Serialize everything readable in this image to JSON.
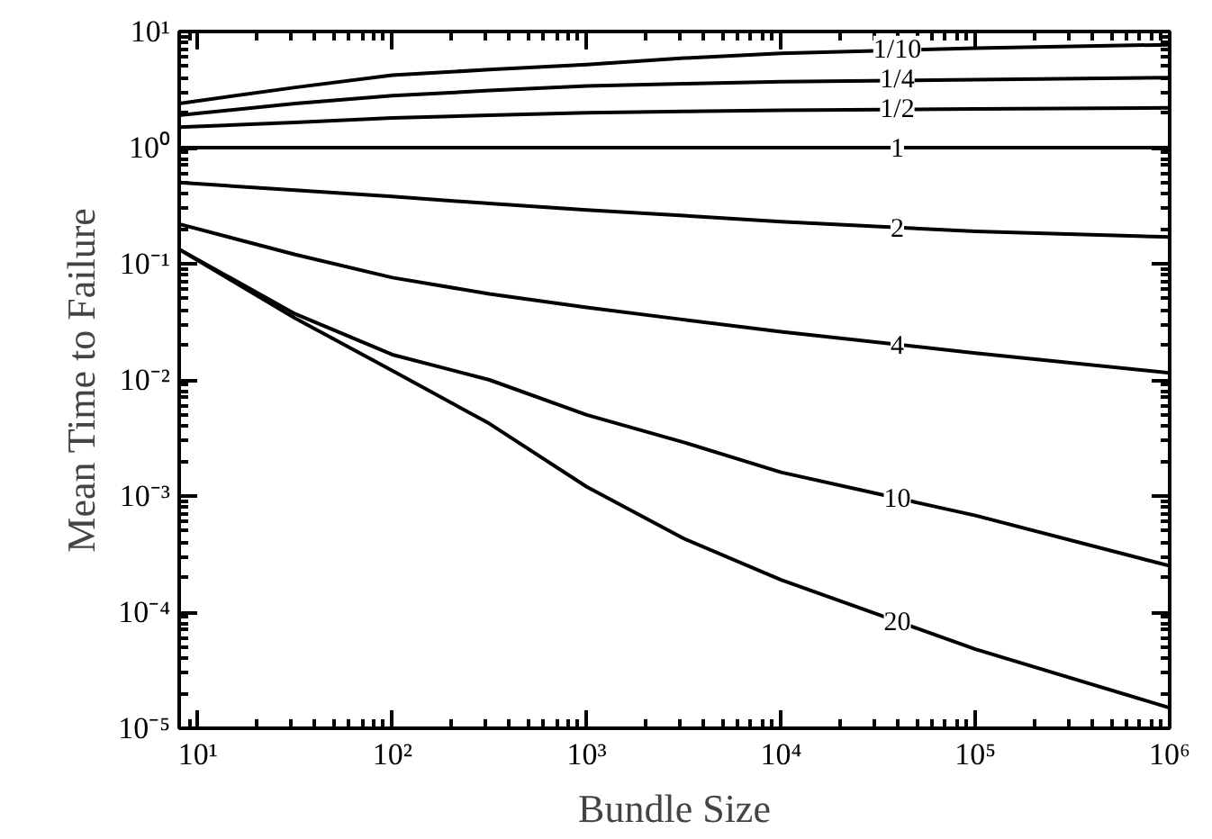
{
  "chart_data": {
    "type": "line",
    "xlabel": "Bundle Size",
    "ylabel": "Mean Time to Failure",
    "log": "xy",
    "grid": false,
    "legend": "right",
    "marker": "none",
    "line_style": "solid",
    "x": [
      8,
      31.6,
      100,
      316,
      1000,
      3162,
      10000,
      100000,
      1000000
    ],
    "xlim": [
      8,
      1000000
    ],
    "ylim": [
      1e-05,
      10
    ],
    "xticks": [
      {
        "value": 10,
        "label": "10¹"
      },
      {
        "value": 100,
        "label": "10²"
      },
      {
        "value": 1000,
        "label": "10³"
      },
      {
        "value": 10000,
        "label": "10⁴"
      },
      {
        "value": 100000,
        "label": "10⁵"
      },
      {
        "value": 1000000,
        "label": "10⁶"
      }
    ],
    "yticks": [
      {
        "value": 1e-05,
        "label": "10⁻⁵"
      },
      {
        "value": 0.0001,
        "label": "10⁻⁴"
      },
      {
        "value": 0.001,
        "label": "10⁻³"
      },
      {
        "value": 0.01,
        "label": "10⁻²"
      },
      {
        "value": 0.1,
        "label": "10⁻¹"
      },
      {
        "value": 1,
        "label": "10⁰"
      },
      {
        "value": 10,
        "label": "10¹"
      }
    ],
    "series": [
      {
        "name": "1/10",
        "color": "#000000",
        "values": [
          2.4,
          3.3,
          4.2,
          4.7,
          5.2,
          5.9,
          6.5,
          7.2,
          7.7
        ]
      },
      {
        "name": "1/4",
        "color": "#000000",
        "values": [
          1.9,
          2.4,
          2.8,
          3.1,
          3.4,
          3.55,
          3.7,
          3.85,
          4.0
        ]
      },
      {
        "name": "1/2",
        "color": "#000000",
        "values": [
          1.5,
          1.65,
          1.8,
          1.9,
          2.0,
          2.05,
          2.1,
          2.15,
          2.2
        ]
      },
      {
        "name": "1",
        "color": "#000000",
        "values": [
          1,
          1,
          1,
          1,
          1,
          1,
          1,
          1,
          1
        ]
      },
      {
        "name": "2",
        "color": "#000000",
        "values": [
          0.5,
          0.43,
          0.38,
          0.33,
          0.29,
          0.26,
          0.23,
          0.19,
          0.17
        ]
      },
      {
        "name": "4",
        "color": "#000000",
        "values": [
          0.22,
          0.12,
          0.076,
          0.055,
          0.042,
          0.033,
          0.026,
          0.017,
          0.0115
        ]
      },
      {
        "name": "10",
        "color": "#000000",
        "values": [
          0.133,
          0.037,
          0.0165,
          0.01,
          0.005,
          0.0029,
          0.0016,
          0.00068,
          0.00025
        ]
      },
      {
        "name": "20",
        "color": "#000000",
        "values": [
          0.133,
          0.034,
          0.012,
          0.0042,
          0.0012,
          0.00043,
          0.00019,
          4.8e-05,
          1.5e-05
        ]
      }
    ]
  }
}
